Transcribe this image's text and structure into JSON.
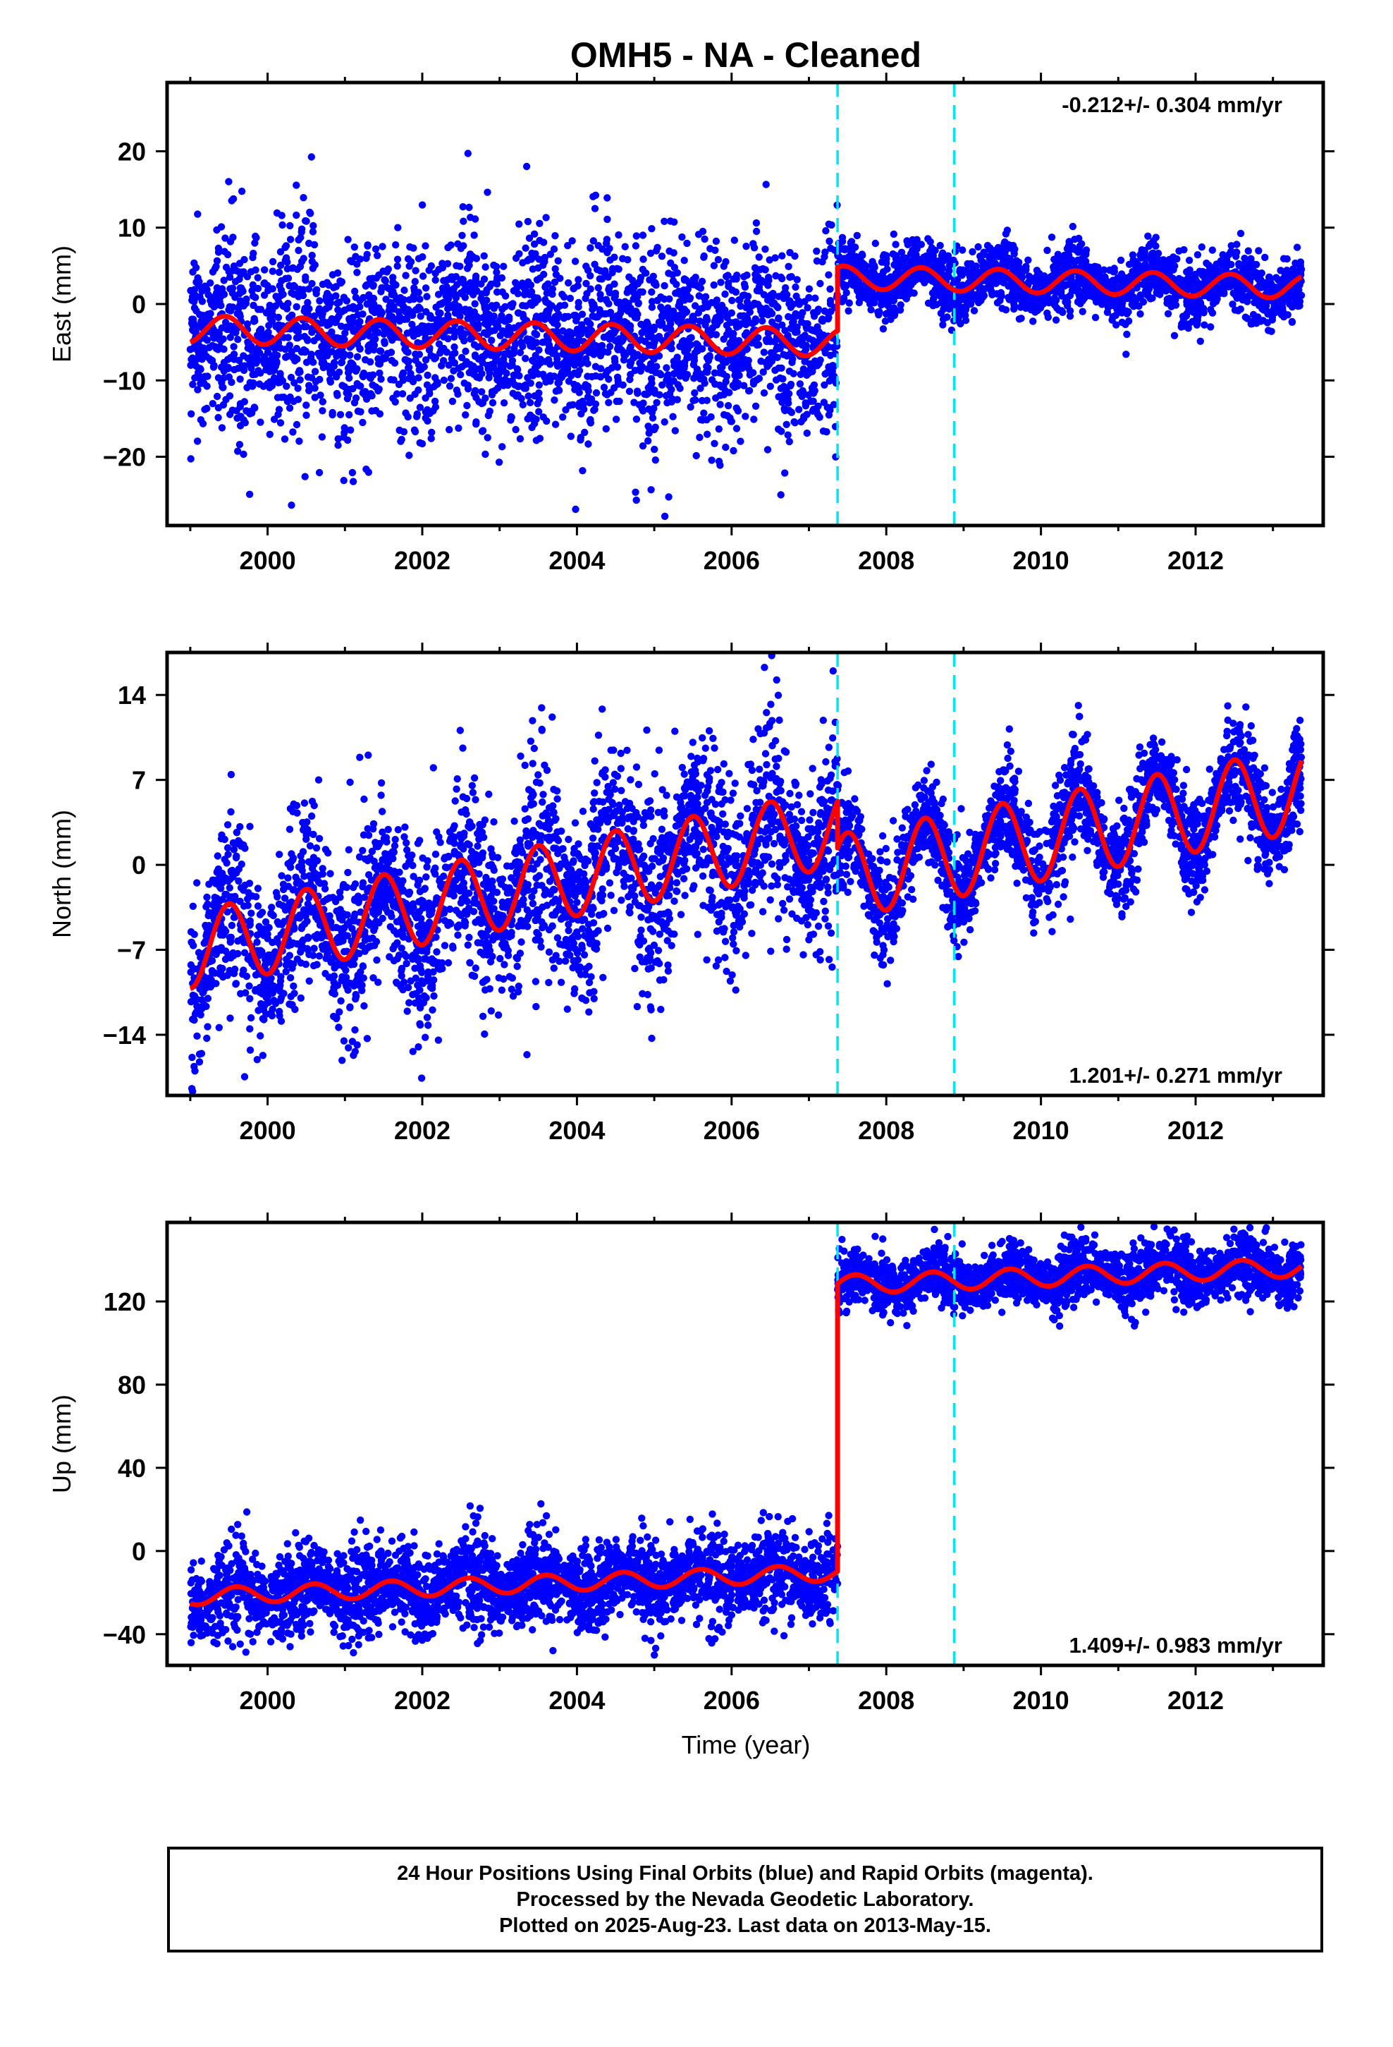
{
  "figure": {
    "title": "OMH5  - NA - Cleaned",
    "xlabel": "Time (year)"
  },
  "colors": {
    "points": "#0000ff",
    "model": "#ff0000",
    "breaks": "#00e5ee",
    "frame": "#000000"
  },
  "chart_data": [
    {
      "type": "scatter",
      "panel": "east",
      "ylabel": "East (mm)",
      "rate_label": "-0.212+/- 0.304 mm/yr",
      "rate_position": "top-right",
      "xlim": [
        1998.7,
        2013.65
      ],
      "ylim": [
        -29,
        29
      ],
      "xticks": [
        2000,
        2002,
        2004,
        2006,
        2008,
        2010,
        2012
      ],
      "yticks": [
        -20,
        -10,
        0,
        10,
        20
      ],
      "break_lines": [
        2007.37,
        2008.88
      ],
      "points_series": {
        "name": "",
        "x_range": [
          1999.0,
          2013.37
        ],
        "noise_before": 5.5,
        "noise_after": 1.8,
        "count": 5000
      },
      "model_series": {
        "name": "",
        "segments": [
          {
            "x0": 1999.0,
            "x1": 2007.37,
            "offset": -3.3,
            "rate": -0.212,
            "t0": 1999.0,
            "amp": 1.8,
            "phase": 0.2
          },
          {
            "x0": 2007.37,
            "x1": 2013.37,
            "offset": 3.5,
            "rate": -0.212,
            "t0": 2007.37,
            "amp": 1.5,
            "phase": 0.2
          }
        ]
      }
    },
    {
      "type": "scatter",
      "panel": "north",
      "ylabel": "North (mm)",
      "rate_label": "1.201+/- 0.271 mm/yr",
      "rate_position": "bottom-right",
      "xlim": [
        1998.7,
        2013.65
      ],
      "ylim": [
        -19,
        17.5
      ],
      "xticks": [
        2000,
        2002,
        2004,
        2006,
        2008,
        2010,
        2012
      ],
      "yticks": [
        -14,
        -7,
        0,
        7,
        14
      ],
      "break_lines": [
        2007.37,
        2008.88
      ],
      "points_series": {
        "name": "",
        "x_range": [
          1999.0,
          2013.37
        ],
        "noise_before": 3.2,
        "noise_after": 1.8,
        "count": 5000
      },
      "model_series": {
        "name": "",
        "segments": [
          {
            "x0": 1999.0,
            "x1": 2007.37,
            "offset": -7.0,
            "rate": 1.2,
            "t0": 1999.0,
            "amp": 3.2,
            "phase": 0.25
          },
          {
            "x0": 2007.37,
            "x1": 2013.37,
            "offset": -1.0,
            "rate": 1.2,
            "t0": 2007.37,
            "amp": 3.5,
            "phase": 0.25
          }
        ]
      }
    },
    {
      "type": "scatter",
      "panel": "up",
      "ylabel": "Up (mm)",
      "rate_label": "1.409+/- 0.983 mm/yr",
      "rate_position": "bottom-right",
      "xlim": [
        1998.7,
        2013.65
      ],
      "ylim": [
        -55,
        158
      ],
      "xticks": [
        2000,
        2002,
        2004,
        2006,
        2008,
        2010,
        2012
      ],
      "yticks": [
        -40,
        0,
        40,
        80,
        120
      ],
      "break_lines": [
        2007.37,
        2008.88
      ],
      "points_series": {
        "name": "",
        "x_range": [
          1999.0,
          2013.37
        ],
        "noise_before": 9.0,
        "noise_after": 6.0,
        "count": 5000
      },
      "model_series": {
        "name": "",
        "segments": [
          {
            "x0": 1999.0,
            "x1": 2007.37,
            "offset": -22.0,
            "rate": 1.4,
            "t0": 1999.0,
            "amp": 4.0,
            "phase": 0.35
          },
          {
            "x0": 2007.37,
            "x1": 2013.37,
            "offset": 128.0,
            "rate": 1.4,
            "t0": 2007.37,
            "amp": 4.5,
            "phase": 0.35
          }
        ]
      }
    }
  ],
  "footer": {
    "line1": "24 Hour Positions Using Final Orbits (blue) and Rapid Orbits (magenta).",
    "line2": "Processed by the Nevada Geodetic Laboratory.",
    "line3": "Plotted on 2025-Aug-23. Last data on 2013-May-15."
  }
}
